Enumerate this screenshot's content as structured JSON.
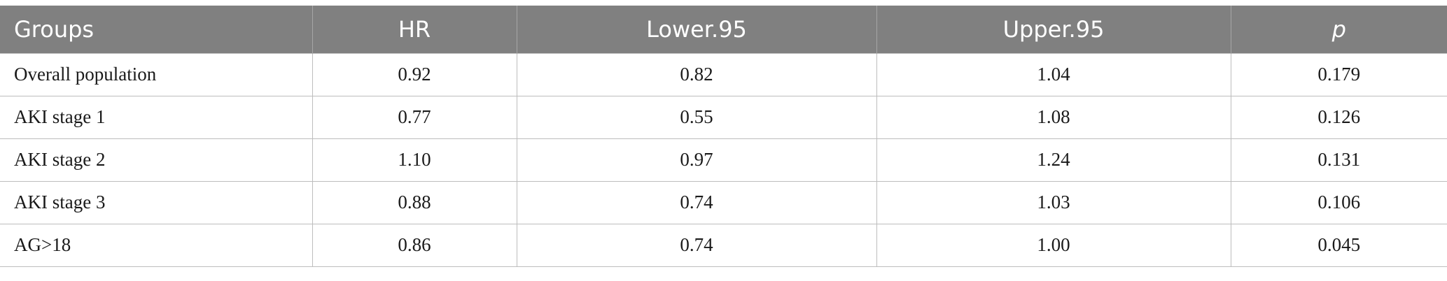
{
  "table": {
    "headers": [
      "Groups",
      "HR",
      "Lower.95",
      "Upper.95",
      "p"
    ],
    "rows": [
      [
        "Overall population",
        "0.92",
        "0.82",
        "1.04",
        "0.179"
      ],
      [
        "AKI stage 1",
        "0.77",
        "0.55",
        "1.08",
        "0.126"
      ],
      [
        "AKI stage 2",
        "1.10",
        "0.97",
        "1.24",
        "0.131"
      ],
      [
        "AKI stage 3",
        "0.88",
        "0.74",
        "1.03",
        "0.106"
      ],
      [
        "AG>18",
        "0.86",
        "0.74",
        "1.00",
        "0.045"
      ]
    ]
  },
  "colors": {
    "header_background": "#808080",
    "header_text": "#ffffff",
    "grid_line": "#bdbdbd"
  }
}
